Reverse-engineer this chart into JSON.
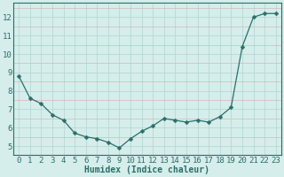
{
  "x": [
    0,
    1,
    2,
    3,
    4,
    5,
    6,
    7,
    8,
    9,
    10,
    11,
    12,
    13,
    14,
    15,
    16,
    17,
    18,
    19,
    20,
    21,
    22,
    23
  ],
  "y": [
    8.8,
    7.6,
    7.3,
    6.7,
    6.4,
    5.7,
    5.5,
    5.4,
    5.2,
    4.9,
    5.4,
    5.8,
    6.1,
    6.5,
    6.4,
    6.3,
    6.4,
    6.3,
    6.6,
    7.1,
    10.4,
    12.0,
    12.2,
    12.2
  ],
  "line_color": "#2d6e6a",
  "marker": "D",
  "marker_size": 2.5,
  "bg_color": "#d5eeeb",
  "grid_color_major": "#b8d8d5",
  "grid_color_minor_h": "#d4b8b8",
  "xlabel": "Humidex (Indice chaleur)",
  "xlabel_fontsize": 7,
  "tick_fontsize": 6.5,
  "ylim": [
    4.5,
    12.8
  ],
  "xlim": [
    -0.5,
    23.5
  ],
  "yticks": [
    5,
    6,
    7,
    8,
    9,
    10,
    11,
    12
  ],
  "xticks": [
    0,
    1,
    2,
    3,
    4,
    5,
    6,
    7,
    8,
    9,
    10,
    11,
    12,
    13,
    14,
    15,
    16,
    17,
    18,
    19,
    20,
    21,
    22,
    23
  ],
  "line_width": 0.9,
  "spine_color": "#2d6e6a"
}
